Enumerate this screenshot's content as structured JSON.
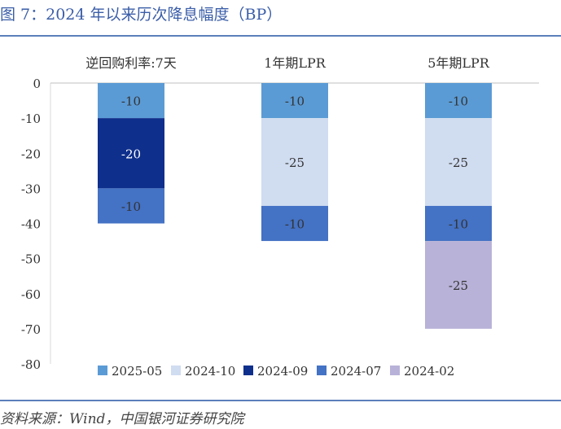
{
  "header": {
    "title": "图 7：2024 年以来历次降息幅度（BP）"
  },
  "footer": {
    "source": "资料来源：Wind，中国银河证券研究院"
  },
  "colors": {
    "2025-05": "#5b9bd5",
    "2024-10": "#d0dcf0",
    "2024-09": "#0f2f8c",
    "2024-07": "#4472c4",
    "2024-02": "#b8b2d8"
  },
  "chart_data": {
    "type": "bar",
    "stacked": true,
    "categories": [
      "逆回购利率:7天",
      "1年期LPR",
      "5年期LPR"
    ],
    "series": [
      {
        "name": "2025-05",
        "values": [
          -10,
          -10,
          -10
        ]
      },
      {
        "name": "2024-10",
        "values": [
          null,
          -25,
          -25
        ]
      },
      {
        "name": "2024-09",
        "values": [
          -20,
          null,
          null
        ]
      },
      {
        "name": "2024-07",
        "values": [
          -10,
          -10,
          -10
        ]
      },
      {
        "name": "2024-02",
        "values": [
          null,
          null,
          -25
        ]
      }
    ],
    "ylim": [
      -80,
      0
    ],
    "yticks": [
      "0",
      "-10",
      "-20",
      "-30",
      "-40",
      "-50",
      "-60",
      "-70",
      "-80"
    ],
    "legend_position": "bottom",
    "grid": false,
    "data_labels": true
  }
}
